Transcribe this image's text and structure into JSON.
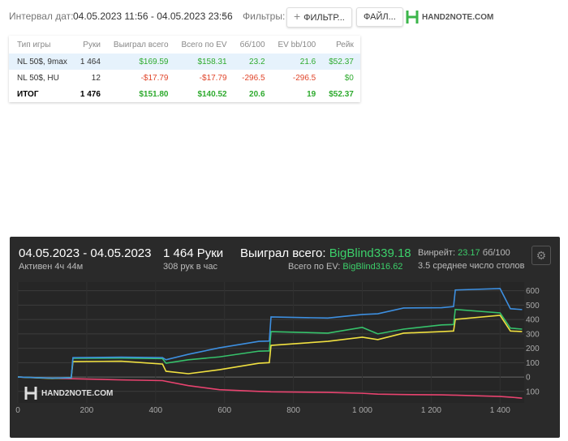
{
  "toolbar": {
    "date_label": "Интервал дат:",
    "date_range": "04.05.2023 11:56 - 04.05.2023 23:56",
    "filters_label": "Фильтры:",
    "filter_button": "ФИЛЬТР...",
    "file_button": "ФАЙЛ...",
    "logo": "HAND2NOTE.COM"
  },
  "table": {
    "header": [
      "Тип игры",
      "Руки",
      "Выиграл всего",
      "Всего по EV",
      "бб/100",
      "EV bb/100",
      "Рейк"
    ],
    "rows": [
      [
        "NL 50$, 9max",
        "1 464",
        "$169.59",
        "$158.31",
        "23.2",
        "21.6",
        "$52.37"
      ],
      [
        "NL 50$, HU",
        "12",
        "-$17.79",
        "-$17.79",
        "-296.5",
        "-296.5",
        "$0"
      ],
      [
        "ИТОГ",
        "1 476",
        "$151.80",
        "$140.52",
        "20.6",
        "19",
        "$52.37"
      ]
    ]
  },
  "panel": {
    "dates": "04.05.2023 - 04.05.2023",
    "active": "Активен 4ч 44м",
    "hands": "1 464 Руки",
    "rate": "308 рук в час",
    "won_label": "Выиграл всего:",
    "won_value": "BigBlind339.18",
    "ev_label": "Всего по EV:",
    "ev_value": "BigBlind316.62",
    "winrate_label": "Винрейт:",
    "winrate_value": "23.17",
    "winrate_unit": "бб/100",
    "tables": "3.5 среднее число столов",
    "watermark": "HAND2NOTE.COM"
  },
  "chart_data": {
    "type": "line",
    "x": [
      0,
      100,
      155,
      160,
      300,
      420,
      430,
      495,
      585,
      700,
      730,
      735,
      900,
      1000,
      1045,
      1120,
      1230,
      1265,
      1270,
      1400,
      1430,
      1464
    ],
    "series": [
      {
        "color": "#3d8fe0",
        "values": [
          0,
          -8,
          -5,
          135,
          138,
          135,
          120,
          158,
          203,
          248,
          250,
          418,
          410,
          435,
          440,
          480,
          482,
          490,
          605,
          615,
          475,
          469
        ]
      },
      {
        "color": "#36c26b",
        "values": [
          0,
          -8,
          -5,
          130,
          132,
          128,
          96,
          120,
          140,
          180,
          182,
          316,
          305,
          345,
          300,
          333,
          362,
          365,
          470,
          446,
          340,
          333
        ]
      },
      {
        "color": "#f0e040",
        "values": [
          0,
          -10,
          -5,
          107,
          110,
          90,
          40,
          23,
          51,
          96,
          100,
          220,
          248,
          277,
          260,
          305,
          316,
          320,
          401,
          429,
          320,
          316
        ]
      },
      {
        "color": "#e8436f",
        "values": [
          0,
          -8,
          -12,
          -12,
          -20,
          -25,
          -30,
          -60,
          -88,
          -100,
          -102,
          -103,
          -107,
          -113,
          -119,
          -122,
          -124,
          -126,
          -126,
          -135,
          -140,
          -147
        ]
      }
    ],
    "xlim": [
      0,
      1470
    ],
    "ylim": [
      -180,
      660
    ],
    "xticks": [
      0,
      200,
      400,
      600,
      800,
      {
        "value": 1000,
        "label": "1 000"
      },
      {
        "value": 1200,
        "label": "1 200"
      },
      {
        "value": 1400,
        "label": "1 400"
      }
    ],
    "yticks": [
      {
        "value": -100,
        "label": "100"
      },
      0,
      100,
      200,
      300,
      400,
      500,
      600
    ],
    "grid": true
  }
}
